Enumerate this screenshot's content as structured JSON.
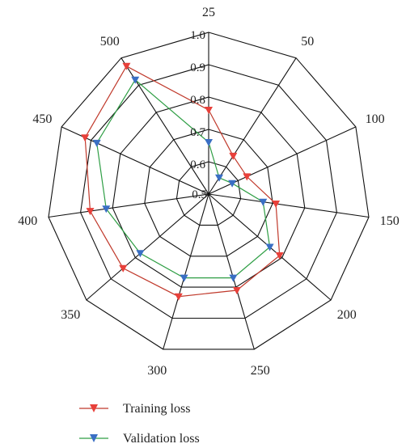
{
  "chart_data": {
    "type": "radar",
    "categories": [
      "25",
      "50",
      "100",
      "150",
      "200",
      "250",
      "300",
      "350",
      "400",
      "450",
      "500"
    ],
    "radial_ticks": [
      "0.5",
      "0.6",
      "0.7",
      "0.8",
      "0.9",
      "1.0"
    ],
    "rlim": [
      0.5,
      1.0
    ],
    "grid": true,
    "legend_position": "bottom-left",
    "series": [
      {
        "name": "Training loss",
        "color": "#c0392b",
        "marker_color": "#e8403a",
        "values": [
          0.76,
          0.64,
          0.63,
          0.71,
          0.79,
          0.81,
          0.83,
          0.85,
          0.87,
          0.92,
          0.97
        ]
      },
      {
        "name": "Validation loss",
        "color": "#2e9e44",
        "marker_color": "#3a6fc4",
        "values": [
          0.66,
          0.56,
          0.58,
          0.67,
          0.75,
          0.77,
          0.77,
          0.78,
          0.82,
          0.88,
          0.92
        ]
      }
    ]
  }
}
